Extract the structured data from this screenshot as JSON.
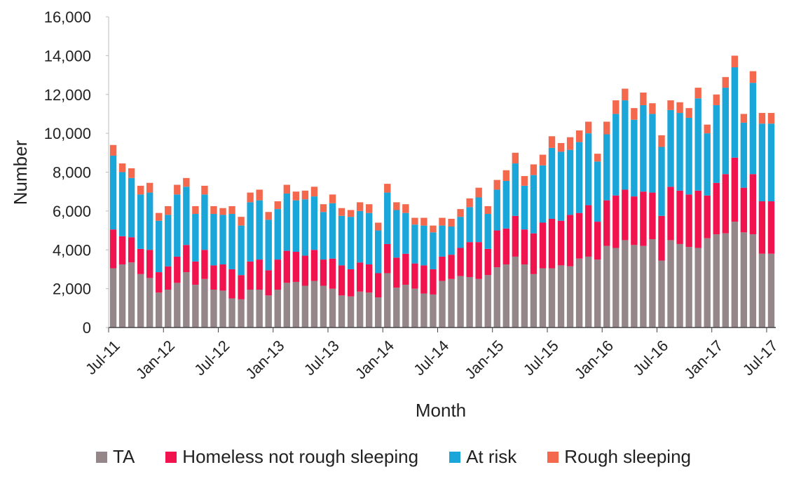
{
  "chart_data": {
    "type": "bar",
    "stacked": true,
    "xlabel": "Month",
    "ylabel": "Number",
    "ylim": [
      0,
      16000
    ],
    "yticks": [
      0,
      2000,
      4000,
      6000,
      8000,
      10000,
      12000,
      14000,
      16000
    ],
    "ytick_labels": [
      "0",
      "2,000",
      "4,000",
      "6,000",
      "8,000",
      "10,000",
      "12,000",
      "14,000",
      "16,000"
    ],
    "xtick_labels": [
      "Jul-11",
      "Jan-12",
      "Jul-12",
      "Jan-13",
      "Jul-13",
      "Jan-14",
      "Jul-14",
      "Jan-15",
      "Jul-15",
      "Jan-16",
      "Jul-16",
      "Jan-17",
      "Jul-17"
    ],
    "legend_position": "bottom",
    "grid": false,
    "categories": [
      "Jul-11",
      "Aug-11",
      "Sep-11",
      "Oct-11",
      "Nov-11",
      "Dec-11",
      "Jan-12",
      "Feb-12",
      "Mar-12",
      "Apr-12",
      "May-12",
      "Jun-12",
      "Jul-12",
      "Aug-12",
      "Sep-12",
      "Oct-12",
      "Nov-12",
      "Dec-12",
      "Jan-13",
      "Feb-13",
      "Mar-13",
      "Apr-13",
      "May-13",
      "Jun-13",
      "Jul-13",
      "Aug-13",
      "Sep-13",
      "Oct-13",
      "Nov-13",
      "Dec-13",
      "Jan-14",
      "Feb-14",
      "Mar-14",
      "Apr-14",
      "May-14",
      "Jun-14",
      "Jul-14",
      "Aug-14",
      "Sep-14",
      "Oct-14",
      "Nov-14",
      "Dec-14",
      "Jan-15",
      "Feb-15",
      "Mar-15",
      "Apr-15",
      "May-15",
      "Jun-15",
      "Jul-15",
      "Aug-15",
      "Sep-15",
      "Oct-15",
      "Nov-15",
      "Dec-15",
      "Jan-16",
      "Feb-16",
      "Mar-16",
      "Apr-16",
      "May-16",
      "Jun-16",
      "Jul-16",
      "Aug-16",
      "Sep-16",
      "Oct-16",
      "Nov-16",
      "Dec-16",
      "Jan-17",
      "Feb-17",
      "Mar-17",
      "Apr-17",
      "May-17",
      "Jun-17",
      "Jul-17"
    ],
    "series": [
      {
        "name": "TA",
        "color": "#948689",
        "values": [
          3050,
          3250,
          3350,
          2750,
          2550,
          1800,
          1950,
          2300,
          2850,
          2200,
          2500,
          1950,
          1900,
          1500,
          1450,
          1950,
          1950,
          1650,
          1950,
          2300,
          2350,
          2150,
          2400,
          2150,
          2000,
          1650,
          1600,
          1850,
          1800,
          1550,
          2800,
          2050,
          2200,
          2000,
          1750,
          1700,
          2400,
          2500,
          2650,
          2600,
          2500,
          2700,
          3100,
          3250,
          3650,
          3250,
          2750,
          3050,
          3050,
          3200,
          3150,
          3550,
          3650,
          3500,
          4200,
          4100,
          4500,
          4250,
          4200,
          4550,
          3450,
          4500,
          4300,
          4150,
          4100,
          4600,
          4800,
          4850,
          5450,
          4900,
          4800,
          3800,
          3800
        ]
      },
      {
        "name": "Homeless not rough sleeping",
        "color": "#f0134d",
        "values": [
          2000,
          1450,
          1300,
          1300,
          1450,
          1050,
          1200,
          1350,
          1400,
          1200,
          1500,
          1250,
          1350,
          1500,
          1250,
          1450,
          1550,
          1300,
          1550,
          1650,
          1550,
          1550,
          1600,
          1350,
          1550,
          1550,
          1400,
          1500,
          1450,
          1250,
          1500,
          1550,
          1600,
          1300,
          1450,
          1300,
          1250,
          1250,
          1450,
          1800,
          1900,
          1350,
          1900,
          1850,
          2100,
          1800,
          2100,
          2350,
          2550,
          2300,
          2650,
          2350,
          2650,
          1950,
          2350,
          2700,
          2600,
          2500,
          2800,
          2400,
          2300,
          2750,
          2750,
          2700,
          2950,
          2200,
          2650,
          3050,
          3300,
          2300,
          3100,
          2700,
          2700
        ]
      },
      {
        "name": "At risk",
        "color": "#1ba6da",
        "values": [
          3800,
          3300,
          3050,
          2800,
          2950,
          2650,
          2650,
          3200,
          3000,
          2450,
          2850,
          2650,
          2550,
          2850,
          2550,
          3050,
          3050,
          2600,
          2600,
          2950,
          2650,
          2900,
          2750,
          2450,
          2850,
          2550,
          2700,
          2650,
          2650,
          2200,
          2650,
          2450,
          2100,
          2000,
          2050,
          1900,
          1600,
          1450,
          1600,
          1800,
          2300,
          1800,
          2100,
          2450,
          2700,
          2250,
          3000,
          2950,
          3650,
          3550,
          3350,
          3650,
          3700,
          3100,
          3400,
          4200,
          4600,
          3950,
          4450,
          4050,
          3550,
          3950,
          4000,
          3950,
          4750,
          3200,
          4000,
          4450,
          4650,
          3350,
          4700,
          4000,
          4000
        ]
      },
      {
        "name": "Rough sleeping",
        "color": "#f4694e",
        "values": [
          550,
          450,
          500,
          450,
          500,
          400,
          450,
          500,
          450,
          400,
          450,
          400,
          350,
          400,
          450,
          500,
          550,
          400,
          400,
          450,
          450,
          450,
          500,
          400,
          450,
          400,
          350,
          450,
          450,
          400,
          450,
          400,
          450,
          350,
          400,
          350,
          400,
          400,
          400,
          450,
          500,
          400,
          500,
          550,
          550,
          500,
          550,
          550,
          600,
          450,
          650,
          600,
          600,
          400,
          650,
          700,
          600,
          600,
          650,
          550,
          600,
          500,
          550,
          500,
          550,
          450,
          550,
          550,
          600,
          450,
          600,
          550,
          550
        ]
      }
    ]
  }
}
